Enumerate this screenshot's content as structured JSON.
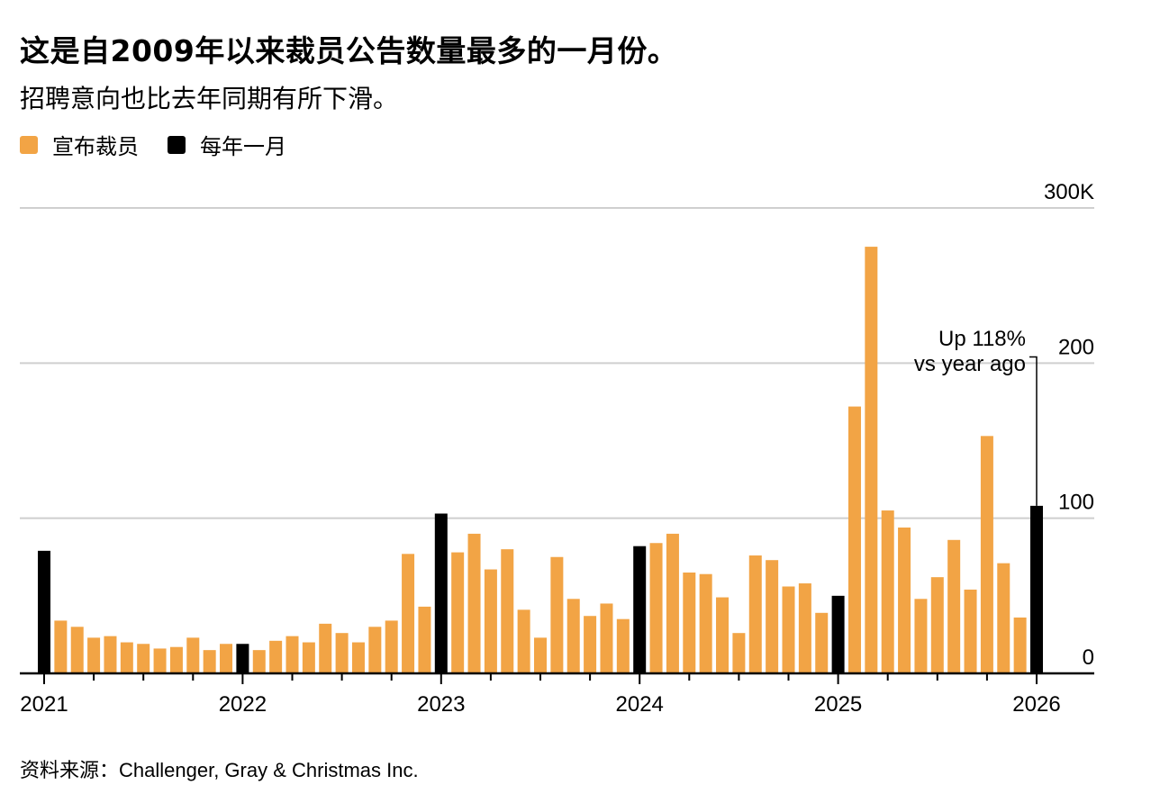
{
  "title": "这是自2009年以来裁员公告数量最多的一月份。",
  "subtitle": "招聘意向也比去年同期有所下滑。",
  "source_label": "资料来源：",
  "source": "Challenger, Gray & Christmas Inc.",
  "chart_data": {
    "type": "bar",
    "title": "这是自2009年以来裁员公告数量最多的一月份。",
    "subtitle": "招聘意向也比去年同期有所下滑。",
    "legend": [
      {
        "name": "宣布裁员",
        "color": "#F2A445"
      },
      {
        "name": "每年一月",
        "color": "#000000"
      }
    ],
    "legend_position": "top-left",
    "y_unit_label": "300K",
    "ylim": [
      0,
      300
    ],
    "y_ticks": [
      "0",
      "100",
      "200",
      "300K"
    ],
    "x_tick_labels": [
      "2021",
      "2022",
      "2023",
      "2024",
      "2025",
      "2026"
    ],
    "grid": true,
    "start": "2021-01",
    "end": "2026-01",
    "values": [
      79,
      34,
      30,
      23,
      24,
      20,
      19,
      16,
      17,
      23,
      15,
      19,
      19,
      15,
      21,
      24,
      20,
      32,
      26,
      20,
      30,
      34,
      77,
      43,
      103,
      78,
      90,
      67,
      80,
      41,
      23,
      75,
      48,
      37,
      45,
      35,
      82,
      84,
      90,
      65,
      64,
      49,
      26,
      76,
      73,
      56,
      58,
      39,
      50,
      172,
      275,
      105,
      94,
      48,
      62,
      86,
      54,
      153,
      71,
      36,
      108
    ],
    "annotation": {
      "line1": "Up 118%",
      "line2": "vs year ago",
      "target": "2026-01"
    }
  }
}
